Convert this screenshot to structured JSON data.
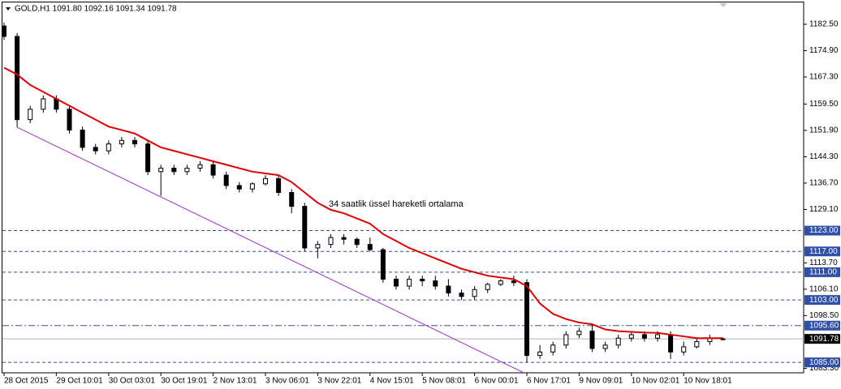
{
  "chart_data": {
    "type": "candlestick",
    "header": "GOLD,H1  1091.80 1092.16 1091.34 1091.78",
    "annotation": "34 saatlik üssel hareketli ortalama",
    "categories": [
      "28 Oct 2015",
      null,
      null,
      null,
      "29 Oct 10:01",
      null,
      null,
      null,
      "30 Oct 03:01",
      null,
      null,
      null,
      "30 Oct 19:01",
      null,
      null,
      null,
      "2 Nov 13:01",
      null,
      null,
      null,
      "3 Nov 06:01",
      null,
      null,
      null,
      "3 Nov 22:01",
      null,
      null,
      null,
      "4 Nov 15:01",
      null,
      null,
      null,
      "5 Nov 08:01",
      null,
      null,
      null,
      "6 Nov 00:01",
      null,
      null,
      null,
      "6 Nov 17:01",
      null,
      null,
      null,
      "9 Nov 09:01",
      null,
      null,
      null,
      "10 Nov 02:01",
      null,
      null,
      null,
      "10 Nov 18:01",
      null,
      null,
      null
    ],
    "open": [
      1182,
      1179,
      1155,
      1158,
      1161,
      1158,
      1152,
      1147,
      1146,
      1148,
      1149,
      1148,
      1140,
      1141,
      1140,
      1141,
      1142,
      1139,
      1136,
      1135,
      1136.5,
      1138,
      1134,
      1130,
      1118,
      1119,
      1121,
      1120.5,
      1119,
      1117.5,
      1109,
      1107,
      1109,
      1108.5,
      1107,
      1105,
      1104,
      1106,
      1107.5,
      1108.5,
      1108,
      1087,
      1088,
      1090,
      1093,
      1094,
      1089,
      1090,
      1092,
      1093,
      1092,
      1093,
      1088,
      1089.5,
      1091,
      1091.8
    ],
    "high": [
      1183,
      1180,
      1159,
      1162,
      1162,
      1159,
      1153,
      1148,
      1149,
      1150,
      1150,
      1149,
      1142,
      1142,
      1142,
      1143,
      1143,
      1140,
      1137,
      1137,
      1139,
      1139,
      1135,
      1131,
      1120,
      1122,
      1122,
      1121,
      1121,
      1118,
      1110,
      1110,
      1110,
      1110,
      1109,
      1106,
      1107,
      1108,
      1109,
      1110,
      1109,
      1090,
      1091,
      1094,
      1095,
      1096,
      1091,
      1093,
      1094,
      1094,
      1094,
      1094,
      1091,
      1092,
      1093,
      1092.16
    ],
    "low": [
      1178,
      1152.8,
      1154,
      1157,
      1157,
      1151,
      1146,
      1145,
      1145,
      1147,
      1147,
      1139,
      1133,
      1139,
      1139,
      1140,
      1138,
      1135,
      1134,
      1134,
      1136,
      1133,
      1128,
      1117,
      1115,
      1118,
      1119,
      1118,
      1117,
      1108,
      1106,
      1106,
      1107,
      1106,
      1104,
      1103,
      1103,
      1105,
      1107,
      1107,
      1085,
      1086,
      1087,
      1089,
      1092,
      1088,
      1088,
      1089,
      1091,
      1091,
      1091,
      1086,
      1087,
      1089,
      1090,
      1091.34
    ],
    "close": [
      1179,
      1155,
      1158,
      1161,
      1158,
      1152,
      1147,
      1146,
      1148,
      1149,
      1148,
      1140,
      1141,
      1140,
      1141,
      1142,
      1139,
      1136,
      1135,
      1136.5,
      1138,
      1134,
      1130,
      1118,
      1119,
      1121,
      1120.5,
      1119,
      1117.5,
      1109,
      1107,
      1109,
      1108.5,
      1107,
      1105,
      1104,
      1106,
      1107.5,
      1108.5,
      1108,
      1087,
      1088,
      1090,
      1093,
      1094,
      1089,
      1090,
      1092,
      1093,
      1092,
      1093,
      1088,
      1089.5,
      1091,
      1092,
      1091.78
    ],
    "ema": {
      "color": "#e00000",
      "values": [
        1170,
        1168,
        1165,
        1163,
        1161,
        1159,
        1157,
        1155,
        1153,
        1152,
        1151,
        1149,
        1147,
        1146,
        1145,
        1144,
        1143,
        1142,
        1141,
        1140,
        1139.5,
        1139,
        1137,
        1134,
        1131,
        1129,
        1128,
        1126.5,
        1125,
        1122,
        1120,
        1118,
        1116.5,
        1115,
        1113.5,
        1112,
        1111,
        1110,
        1109.5,
        1109,
        1107,
        1102,
        1099,
        1097.5,
        1096.5,
        1096,
        1094.5,
        1094,
        1093.8,
        1093.6,
        1093.5,
        1093,
        1092.5,
        1092,
        1092,
        1092
      ]
    },
    "trendline": {
      "color": "#9b30c8",
      "x": [
        1,
        40
      ],
      "values": [
        1152.8,
        1081.6
      ]
    },
    "ylim": [
      1082.0,
      1188.8
    ],
    "yticks": [
      {
        "value": 1182.5,
        "label": "1182.50"
      },
      {
        "value": 1174.9,
        "label": "1174.90"
      },
      {
        "value": 1167.3,
        "label": "1167.30"
      },
      {
        "value": 1159.5,
        "label": "1159.50"
      },
      {
        "value": 1151.9,
        "label": "1151.90"
      },
      {
        "value": 1144.3,
        "label": "1144.30"
      },
      {
        "value": 1136.7,
        "label": "1136.70"
      },
      {
        "value": 1129.1,
        "label": "1129.10"
      },
      {
        "value": 1113.7,
        "label": "1113.70"
      },
      {
        "value": 1106.1,
        "label": "1106.10"
      },
      {
        "value": 1098.5,
        "label": "1098.50"
      },
      {
        "value": 1083.3,
        "label": "1083.30"
      }
    ],
    "hlines": [
      {
        "value": 1123,
        "label": "1123.00",
        "style": "dash"
      },
      {
        "value": 1117,
        "label": "1117.00",
        "style": "dash"
      },
      {
        "value": 1111,
        "label": "1111.00",
        "style": "dash"
      },
      {
        "value": 1103,
        "label": "1103.00",
        "style": "dash"
      },
      {
        "value": 1095.6,
        "label": "1095.60",
        "style": "dashdot"
      },
      {
        "value": 1085,
        "label": "1085.00",
        "style": "dash"
      }
    ],
    "hline_color": "#2f4fa8",
    "price_line": {
      "value": 1091.78,
      "color": "#b0b0b0"
    }
  }
}
